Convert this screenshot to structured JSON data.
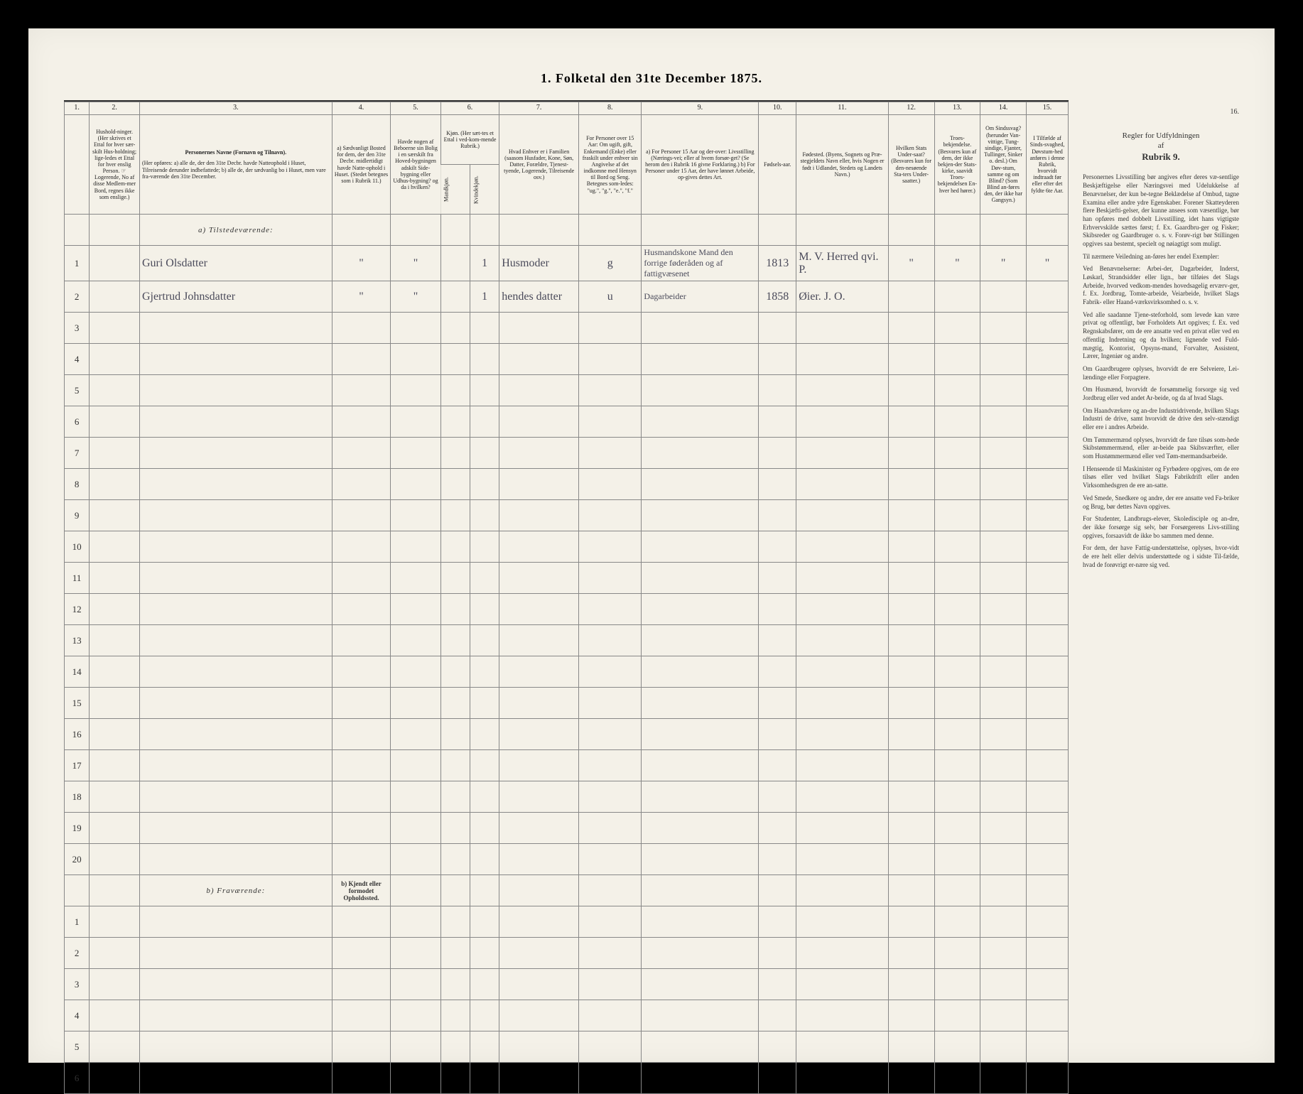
{
  "title": "1. Folketal den 31te December 1875.",
  "colors": {
    "page_bg": "#f4f1e8",
    "border": "#888",
    "text": "#222",
    "handwriting": "#4a4a5a",
    "frame": "#000"
  },
  "column_numbers": [
    "1.",
    "2.",
    "3.",
    "4.",
    "5.",
    "6.",
    "7.",
    "8.",
    "9.",
    "10.",
    "11.",
    "12.",
    "13.",
    "14.",
    "15.",
    "16."
  ],
  "headers": {
    "c1": "",
    "c2": "Hushold-ninger. (Her skrives et Ettal for hver sær-skilt Hus-holdning; lige-ledes et Ettal for hver enslig Person. ☞ Logerende, No af disse Medlem-mer Bord, regnes ikke som enslige.)",
    "c3_title": "Personernes Navne (Fornavn og Tilnavn).",
    "c3_sub": "(Her opføres:\na) alle de, der den 31te Decbr. havde Natteophold i Huset, Tilreisende derunder indbefattede;\nb) alle de, der sædvanlig bo i Huset, men vare fra-værende den 31te December.",
    "c4": "a) Sædvanligt Bosted for dem, der den 31te Decbr. midlertidigt havde Natte-ophold i Huset. (Stedet betegnes som i Rubrik 11.)",
    "c5": "Havde nogen af Beboerne sin Bolig i en særskilt fra Hoved-bygningen adskilt Side-bygning eller Udhus-bygning? og da i hvilken?",
    "c6_top": "Kjøn. (Her sæt-tes et Ettal i ved-kom-mende Rubrik.)",
    "c6a": "Mandkjøn.",
    "c6b": "Kvindekjøn.",
    "c7": "Hvad Enhver er i Familien (saasom Husfader, Kone, Søn, Datter, Forældre, Tjenest-tyende, Logerende, Tilreisende osv.)",
    "c8": "For Personer over 15 Aar: Om ugift, gift, Enkemand (Enke) eller fraskilt under enhver sin Angivelse af det indkomne med Hensyn til Bord og Seng. Betegnes som-ledes: \"ug.\", \"g.\", \"e.\", \"f.\"",
    "c9": "a) For Personer 15 Aar og der-over: Livsstilling (Nærings-vei; eller af hvem forsør-get? (Se herom den i Rubrik 16 givne Forklaring.)\nb) For Personer under 15 Aar, der have lønnet Arbeide, op-gives dettes Art.",
    "c10": "Fødsels-aar.",
    "c11": "Fødested. (Byens, Sognets og Præ-stegjeldets Navn eller, hvis Nogen er født i Udlandet, Stedets og Landets Navn.)",
    "c12": "Hvilken Stats Under-saat? (Besvares kun for den-nesøende Sta-ters Under-saatter.)",
    "c13": "Troes-bekjendelse. (Besvares kun af dem, der ikke bekjen-der Stats-kirke, saavidt Troes-bekjendelsen En-hver hed hører.)",
    "c14": "Om Sindssvag? (herunder Van-vittige, Tung-sindige, Fjanter, Tullinger, Sinker o. desl.) Om Døv-stum, samme og om Blind? (Som Blind an-føres den, der ikke har Gangsyn.)",
    "c15": "I Tilfælde af Sinds-svaghed, Døvstum-hed anføres i denne Rubrik, hvorvidt indtraadt før eller efter det fyldte 6te Aar.",
    "c16": ""
  },
  "section_a": "a) Tilstedeværende:",
  "section_b": "b) Fraværende:",
  "section_b_note": "b) Kjendt eller formodet Opholdssted.",
  "rows_a": [
    {
      "n": "1",
      "name": "Guri Olsdatter",
      "c4": "\"",
      "c5": "\"",
      "c6a": "",
      "c6b": "1",
      "c7": "Husmoder",
      "c8": "g",
      "c9": "Husmandskone Mand den forrige føderåden og af fattigvæsenet",
      "c10": "1813",
      "c11": "M. V. Herred qvi. P.",
      "c12": "\"",
      "c13": "\"",
      "c14": "\"",
      "c15": "\""
    },
    {
      "n": "2",
      "name": "Gjertrud Johnsdatter",
      "c4": "\"",
      "c5": "\"",
      "c6a": "",
      "c6b": "1",
      "c7": "hendes datter",
      "c8": "u",
      "c9": "Dagarbeider",
      "c10": "1858",
      "c11": "Øier. J. O.",
      "c12": "",
      "c13": "",
      "c14": "",
      "c15": ""
    },
    {
      "n": "3"
    },
    {
      "n": "4"
    },
    {
      "n": "5"
    },
    {
      "n": "6"
    },
    {
      "n": "7"
    },
    {
      "n": "8"
    },
    {
      "n": "9"
    },
    {
      "n": "10"
    },
    {
      "n": "11"
    },
    {
      "n": "12"
    },
    {
      "n": "13"
    },
    {
      "n": "14"
    },
    {
      "n": "15"
    },
    {
      "n": "16"
    },
    {
      "n": "17"
    },
    {
      "n": "18"
    },
    {
      "n": "19"
    },
    {
      "n": "20"
    }
  ],
  "rows_b": [
    {
      "n": "1"
    },
    {
      "n": "2"
    },
    {
      "n": "3"
    },
    {
      "n": "4"
    },
    {
      "n": "5"
    },
    {
      "n": "6"
    }
  ],
  "sidebar": {
    "title_line1": "Regler for Udfyldningen",
    "title_line2": "af",
    "title_line3": "Rubrik 9.",
    "paragraphs": [
      "Personernes Livsstilling bør angives efter deres væ-sentlige Beskjæftigelse eller Næringsvei med Udelukkelse af Benævnelser, der kun be-tegne Beklædelse af Ombud, tagne Examina eller andre ydre Egenskaber. Forener Skatteyderen flere Beskjæfti-gelser, der kunne ansees som væsentlige, bør han opføres med dobbelt Livsstilling, idet hans vigtigste Erhvervskilde sættes først; f. Ex. Gaardbru-ger og Fisker; Skibsreder og Gaardbruger o. s. v. Forøv-rigt bør Stillingen opgives saa bestemt, specielt og nøiagtigt som muligt.",
      "Til nærmere Veiledning an-føres her endel Exempler:",
      "Ved Benævnelserne: Arbei-der, Dagarbeider, Inderst, Løskarl, Strandsidder eller lign., bør tilføies det Slags Arbeide, hvorved vedkom-mendes hovedsagelig erværv-ger, f. Ex. Jordbrug, Tomte-arbeide, Veiarbeide, hvilket Slags Fabrik- eller Haand-værksvirksomhed o. s. v.",
      "Ved alle saadanne Tjene-steforhold, som levede kan være privat og offentligt, bør Forholdets Art opgives; f. Ex. ved Regnskabsfører, om de ere ansatte ved en privat eller ved en offentlig Indretning og da hvilken; lignende ved Fuld-mægtig, Kontorist, Opsyns-mand, Forvalter, Assistent, Lærer, Ingeniør og andre.",
      "Om Gaardbrugere oplyses, hvorvidt de ere Selveiere, Lei-lændinge eller Forpagtere.",
      "Om Husmænd, hvorvidt de forsømmelig forsorge sig ved Jordbrug eller ved andet Ar-beide, og da af hvad Slags.",
      "Om Haandværkere og an-dre Industridrivende, hvilken Slags Industri de drive, samt hvorvidt de drive den selv-stændigt eller ere i andres Arbeide.",
      "Om Tømmermænd oplyses, hvorvidt de fare tilsøs som-hede Skibstømmermænd, eller ar-beide paa Skibsværfter, eller som Hustømmermænd eller ved Tøm-mermandsarbeide.",
      "I Henseende til Maskinister og Fyrbødere opgives, om de ere tilsøs eller ved hvilket Slags Fabrikdrift eller anden Virksomhedsgren de ere an-satte.",
      "Ved Smede, Snedkere og andre, der ere ansatte ved Fa-briker og Brug, bør dettes Navn opgives.",
      "For Studenter, Landbrugs-elever, Skoledisciple og an-dre, der ikke forsørge sig selv, bør Forsørgerens Livs-stilling opgives, forsaavidt de ikke bo sammen med denne.",
      "For dem, der have Fattig-understøttelse, oplyses, hvor-vidt de ere helt eller delvis understøttede og i sidste Til-fælde, hvad de forøvrigt er-nære sig ved."
    ]
  }
}
